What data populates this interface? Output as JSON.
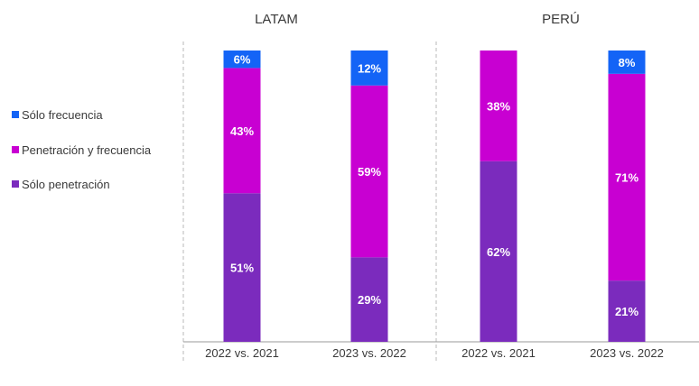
{
  "chart_data": {
    "type": "bar",
    "stacked": true,
    "groups": [
      {
        "title": "LATAM",
        "bars": [
          {
            "category": "2022 vs. 2021",
            "solo_penetracion": 51,
            "penetracion_y_frecuencia": 43,
            "solo_frecuencia": 6,
            "labels": {
              "solo_penetracion": "51%",
              "penetracion_y_frecuencia": "43%",
              "solo_frecuencia": "6%"
            }
          },
          {
            "category": "2023 vs. 2022",
            "solo_penetracion": 29,
            "penetracion_y_frecuencia": 59,
            "solo_frecuencia": 12,
            "labels": {
              "solo_penetracion": "29%",
              "penetracion_y_frecuencia": "59%",
              "solo_frecuencia": "12%"
            }
          }
        ]
      },
      {
        "title": "PERÚ",
        "bars": [
          {
            "category": "2022 vs. 2021",
            "solo_penetracion": 62,
            "penetracion_y_frecuencia": 38,
            "solo_frecuencia": 0,
            "labels": {
              "solo_penetracion": "62%",
              "penetracion_y_frecuencia": "38%",
              "solo_frecuencia": ""
            }
          },
          {
            "category": "2023 vs. 2022",
            "solo_penetracion": 21,
            "penetracion_y_frecuencia": 71,
            "solo_frecuencia": 8,
            "labels": {
              "solo_penetracion": "21%",
              "penetracion_y_frecuencia": "71%",
              "solo_frecuencia": "8%"
            }
          }
        ]
      }
    ],
    "series": [
      {
        "key": "solo_frecuencia",
        "name": "Sólo frecuencia",
        "color": "#1464f6"
      },
      {
        "key": "penetracion_y_frecuencia",
        "name": "Penetración y frecuencia",
        "color": "#c800d2"
      },
      {
        "key": "solo_penetracion",
        "name": "Sólo penetración",
        "color": "#7b2bbd"
      }
    ],
    "stack_order": [
      "solo_penetracion",
      "penetracion_y_frecuencia",
      "solo_frecuencia"
    ],
    "ylim": [
      0,
      100
    ],
    "legend_position": "left",
    "grid": false
  }
}
